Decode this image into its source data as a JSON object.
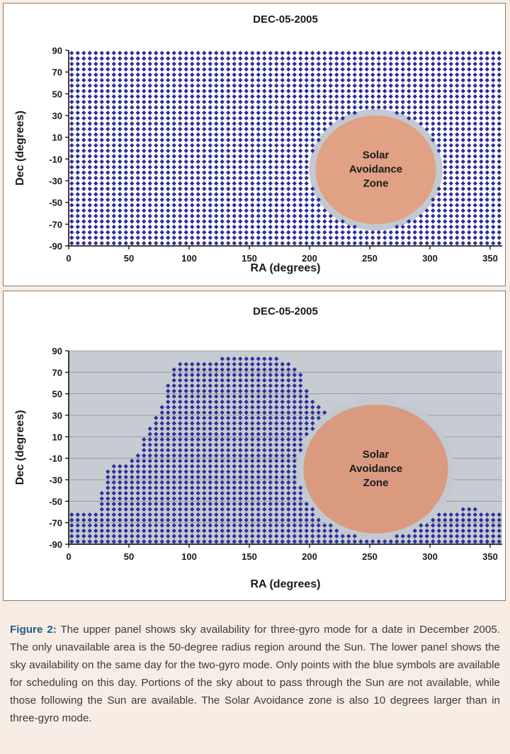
{
  "chart_data": [
    {
      "type": "scatter",
      "title": "DEC-05-2005",
      "xlabel": "RA (degrees)",
      "ylabel": "Dec (degrees)",
      "xlim": [
        0,
        360
      ],
      "ylim": [
        -90,
        90
      ],
      "xticks": [
        "0",
        "50",
        "100",
        "150",
        "200",
        "250",
        "300",
        "350"
      ],
      "yticks": [
        "90",
        "70",
        "50",
        "30",
        "10",
        "-10",
        "-30",
        "-50",
        "-70",
        "-90"
      ],
      "grid_step": [
        5,
        5
      ],
      "marker_color": "#2c2f9a",
      "plot_background": "#ffffff",
      "show_gridlines": false,
      "avoidance_zone": {
        "label": [
          "Solar",
          "Avoidance",
          "Zone"
        ],
        "center_ra": 255,
        "center_dec": -20,
        "radius_deg": 50,
        "fill": "#e0a184",
        "halo": "#c3c9d0"
      },
      "available_region": "all sky except solar avoidance zone"
    },
    {
      "type": "scatter",
      "title": "DEC-05-2005",
      "xlabel": "RA (degrees)",
      "ylabel": "Dec (degrees)",
      "xlim": [
        0,
        360
      ],
      "ylim": [
        -90,
        90
      ],
      "xticks": [
        "0",
        "50",
        "100",
        "150",
        "200",
        "250",
        "300",
        "350"
      ],
      "yticks": [
        "90",
        "70",
        "50",
        "30",
        "10",
        "-10",
        "-30",
        "-50",
        "-70",
        "-90"
      ],
      "grid_step": [
        5,
        5
      ],
      "marker_color": "#2c2f9a",
      "plot_background": "#c7ccd3",
      "show_gridlines": true,
      "avoidance_zone": {
        "label": [
          "Solar",
          "Avoidance",
          "Zone"
        ],
        "center_ra": 255,
        "center_dec": -20,
        "radius_deg": 60,
        "fill": "#d99a80",
        "halo": "#c3c9d0"
      },
      "available_region_profile": [
        [
          2,
          -90,
          -62
        ],
        [
          5,
          -90,
          -62
        ],
        [
          10,
          -90,
          -62
        ],
        [
          15,
          -90,
          -62
        ],
        [
          20,
          -90,
          -62
        ],
        [
          25,
          -90,
          -40
        ],
        [
          30,
          -90,
          -22
        ],
        [
          35,
          -90,
          -15
        ],
        [
          40,
          -90,
          -15
        ],
        [
          45,
          -90,
          -15
        ],
        [
          50,
          -90,
          -8
        ],
        [
          55,
          -90,
          -3
        ],
        [
          60,
          -90,
          8
        ],
        [
          65,
          -90,
          18
        ],
        [
          70,
          -90,
          28
        ],
        [
          75,
          -90,
          38
        ],
        [
          80,
          -90,
          62
        ],
        [
          85,
          -90,
          75
        ],
        [
          90,
          -90,
          82
        ],
        [
          95,
          -90,
          82
        ],
        [
          100,
          -90,
          82
        ],
        [
          105,
          -90,
          82
        ],
        [
          110,
          -90,
          82
        ],
        [
          115,
          -90,
          82
        ],
        [
          120,
          -90,
          82
        ],
        [
          125,
          -90,
          85
        ],
        [
          130,
          -90,
          85
        ],
        [
          135,
          -90,
          85
        ],
        [
          140,
          -90,
          87
        ],
        [
          145,
          -90,
          85
        ],
        [
          150,
          -90,
          85
        ],
        [
          155,
          -90,
          85
        ],
        [
          160,
          -90,
          85
        ],
        [
          165,
          -90,
          85
        ],
        [
          170,
          -90,
          85
        ],
        [
          175,
          -90,
          82
        ],
        [
          180,
          -90,
          80
        ],
        [
          185,
          -90,
          75
        ],
        [
          190,
          -90,
          68
        ],
        [
          195,
          -90,
          55
        ],
        [
          200,
          -90,
          45
        ],
        [
          205,
          -90,
          40
        ],
        [
          210,
          -90,
          35
        ],
        [
          215,
          -90,
          30
        ],
        [
          220,
          -90,
          25
        ],
        [
          225,
          -90,
          20
        ],
        [
          230,
          -90,
          15
        ],
        [
          235,
          -90,
          10
        ],
        [
          240,
          -90,
          5
        ],
        [
          245,
          -90,
          0
        ],
        [
          250,
          -90,
          -5
        ],
        [
          255,
          -90,
          -10
        ],
        [
          260,
          -90,
          -15
        ],
        [
          265,
          -90,
          -20
        ],
        [
          270,
          -90,
          -25
        ],
        [
          275,
          -90,
          -30
        ],
        [
          280,
          -90,
          -35
        ],
        [
          285,
          -90,
          -40
        ],
        [
          290,
          -90,
          -45
        ],
        [
          295,
          -90,
          -50
        ],
        [
          300,
          -90,
          -55
        ],
        [
          305,
          -90,
          -60
        ],
        [
          310,
          -90,
          -62
        ],
        [
          315,
          -90,
          -62
        ],
        [
          320,
          -90,
          -58
        ],
        [
          325,
          -90,
          -55
        ],
        [
          330,
          -90,
          -55
        ],
        [
          335,
          -90,
          -55
        ],
        [
          340,
          -90,
          -60
        ],
        [
          345,
          -90,
          -62
        ],
        [
          350,
          -90,
          -62
        ],
        [
          355,
          -90,
          -62
        ],
        [
          358,
          -90,
          -62
        ]
      ]
    }
  ],
  "caption": {
    "lead": "Figure 2:",
    "text": " The upper panel shows sky availability for three-gyro mode for a date in December 2005. The only unavailable area is the 50-degree radius region around the Sun. The lower panel shows the sky availability on the same day for the two-gyro mode. Only points with the blue symbols are available for scheduling on this day. Portions of the sky about to pass through the Sun are not available, while those following the Sun are available. The Solar Avoidance zone is also 10 degrees larger than in three-gyro mode."
  }
}
